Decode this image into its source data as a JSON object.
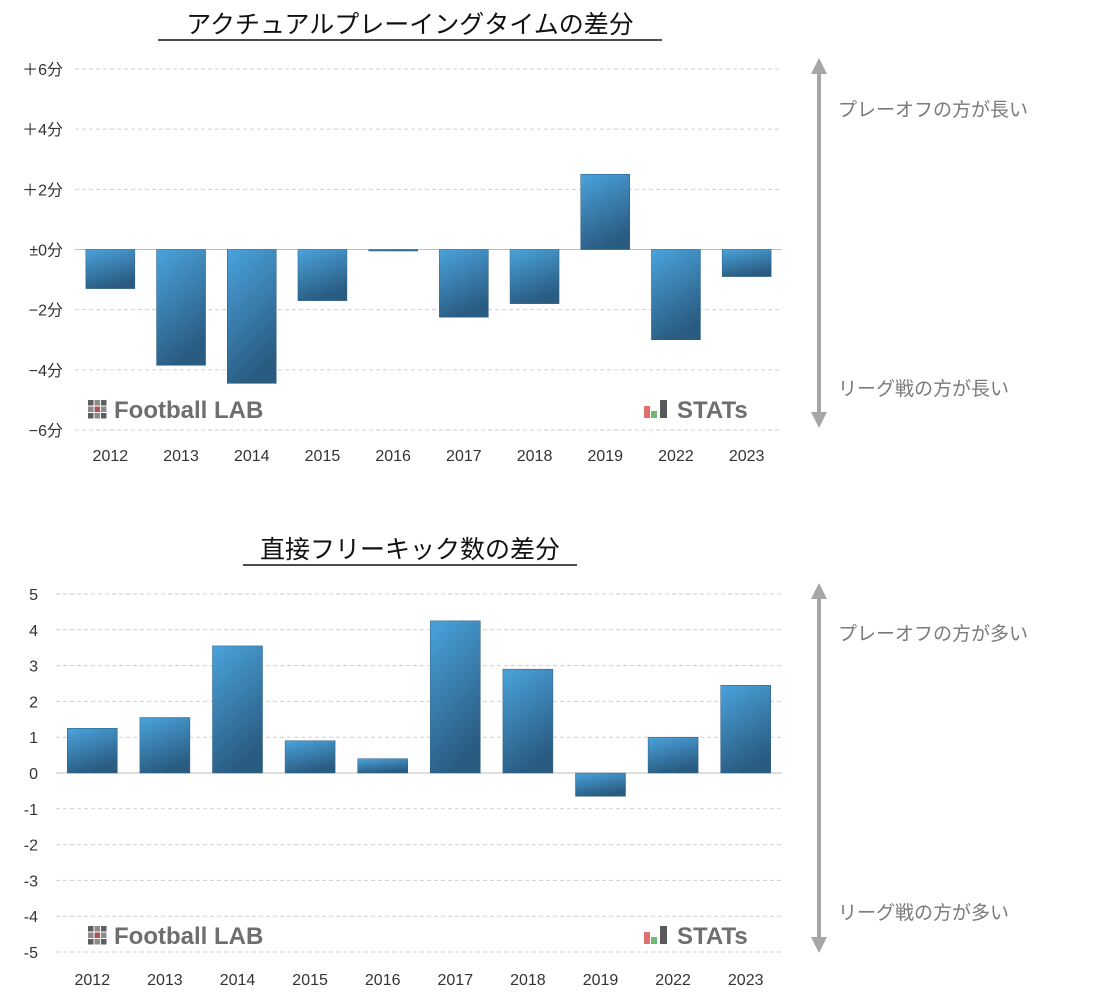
{
  "chart_data": [
    {
      "type": "bar",
      "title": "アクチュアルプレーイングタイムの差分",
      "categories": [
        "2012",
        "2013",
        "2014",
        "2015",
        "2016",
        "2017",
        "2018",
        "2019",
        "2022",
        "2023"
      ],
      "values": [
        -1.3,
        -3.85,
        -4.45,
        -1.7,
        -0.05,
        -2.25,
        -1.8,
        2.5,
        -3.0,
        -0.9
      ],
      "ylim": [
        -6,
        6
      ],
      "yticks": [
        6,
        4,
        2,
        0,
        -2,
        -4,
        -6
      ],
      "ytick_labels": [
        "＋6分",
        "＋4分",
        "＋2分",
        "±0分",
        "−2分",
        "−4分",
        "−6分"
      ],
      "grid": true,
      "annotations": {
        "top": "プレーオフの方が長い",
        "bottom": "リーグ戦の方が長い"
      },
      "logos": {
        "left": "Football LAB",
        "right": "STATs"
      }
    },
    {
      "type": "bar",
      "title": "直接フリーキック数の差分",
      "categories": [
        "2012",
        "2013",
        "2014",
        "2015",
        "2016",
        "2017",
        "2018",
        "2019",
        "2022",
        "2023"
      ],
      "values": [
        1.25,
        1.55,
        3.55,
        0.9,
        0.4,
        4.25,
        2.9,
        -0.65,
        1.0,
        2.45
      ],
      "ylim": [
        -5,
        5
      ],
      "yticks": [
        5,
        4,
        3,
        2,
        1,
        0,
        -1,
        -2,
        -3,
        -4,
        -5
      ],
      "ytick_labels": [
        "5",
        "4",
        "3",
        "2",
        "1",
        "0",
        "-1",
        "-2",
        "-3",
        "-4",
        "-5"
      ],
      "grid": true,
      "annotations": {
        "top": "プレーオフの方が多い",
        "bottom": "リーグ戦の方が多い"
      },
      "logos": {
        "left": "Football LAB",
        "right": "STATs"
      }
    }
  ],
  "colors": {
    "bar_top": "#4a9fd6",
    "bar_bottom": "#2b5f86",
    "arrow": "#a6a6a6",
    "grid": "#c8c8c8"
  }
}
